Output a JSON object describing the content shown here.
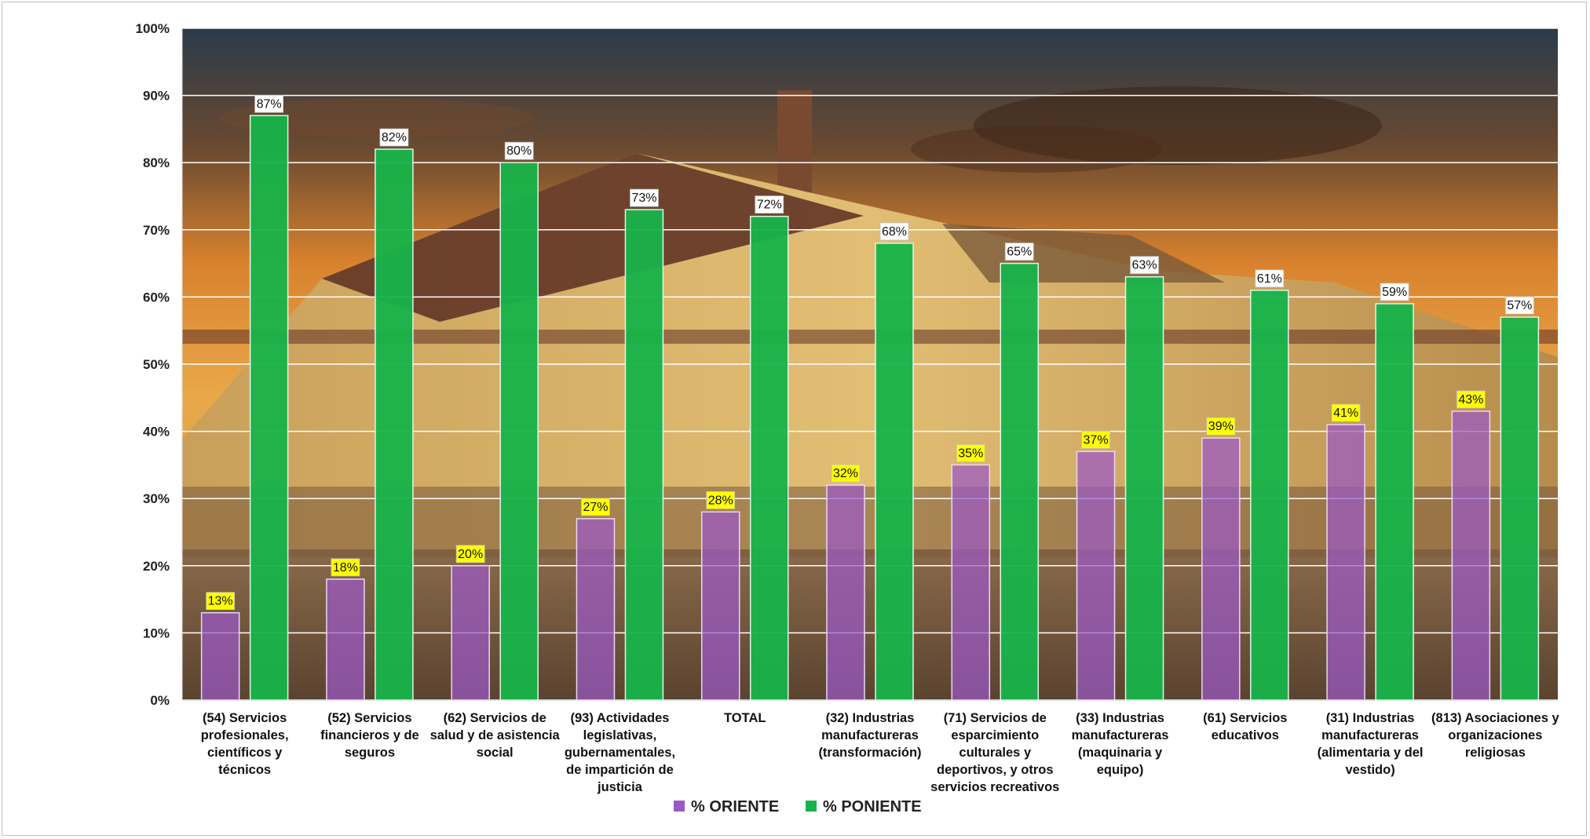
{
  "chart_data": {
    "type": "bar",
    "categories": [
      [
        "(54) Servicios",
        "profesionales,",
        "científicos y",
        "técnicos"
      ],
      [
        "(52) Servicios",
        "financieros y de",
        "seguros"
      ],
      [
        "(62) Servicios de",
        "salud y de asistencia",
        "social"
      ],
      [
        "(93) Actividades",
        "legislativas,",
        "gubernamentales,",
        "de impartición de",
        "justicia"
      ],
      [
        "TOTAL"
      ],
      [
        "(32) Industrias",
        "manufactureras",
        "(transformación)"
      ],
      [
        "(71) Servicios de",
        "esparcimiento",
        "culturales y",
        "deportivos, y otros",
        "servicios recreativos"
      ],
      [
        "(33) Industrias",
        "manufactureras",
        "(maquinaria y",
        "equipo)"
      ],
      [
        "(61) Servicios",
        "educativos"
      ],
      [
        "(31) Industrias",
        "manufactureras",
        "(alimentaria y del",
        "vestido)"
      ],
      [
        "(813) Asociaciones y",
        "organizaciones",
        "religiosas"
      ]
    ],
    "series": [
      {
        "name": "% ORIENTE",
        "color": "#9b59c6",
        "label_bg": "#ffff00",
        "values": [
          13,
          18,
          20,
          27,
          28,
          32,
          35,
          37,
          39,
          41,
          43
        ],
        "labels": [
          "13%",
          "18%",
          "20%",
          "27%",
          "28%",
          "32%",
          "35%",
          "37%",
          "39%",
          "41%",
          "43%"
        ]
      },
      {
        "name": "% PONIENTE",
        "color": "#17b34a",
        "label_bg": "#ffffff",
        "values": [
          87,
          82,
          80,
          73,
          72,
          68,
          65,
          63,
          61,
          59,
          57
        ],
        "labels": [
          "87%",
          "82%",
          "80%",
          "73%",
          "72%",
          "68%",
          "65%",
          "63%",
          "61%",
          "59%",
          "57%"
        ]
      }
    ],
    "yticks": [
      "0%",
      "10%",
      "20%",
      "30%",
      "40%",
      "50%",
      "60%",
      "70%",
      "80%",
      "90%",
      "100%"
    ],
    "ylim": [
      0,
      100
    ],
    "grid": true,
    "legend_position": "bottom",
    "background": "photograph of a historic railway station building at sunset"
  }
}
